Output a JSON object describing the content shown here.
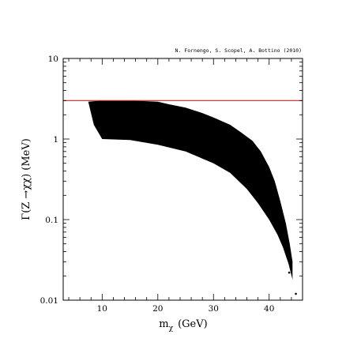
{
  "chart_data": {
    "type": "scatter",
    "title": "",
    "annotation": "N. Fornengo, S. Scopel, A. Bottino  (2010)",
    "xlabel": {
      "main": "m",
      "sub": "χ",
      "unit": "(GeV)"
    },
    "ylabel": "Γ(Z  →χχ)   (MeV)",
    "xlim": [
      3,
      46
    ],
    "ylim": [
      0.01,
      10
    ],
    "yscale": "log",
    "grid": false,
    "x_ticks": [
      "10",
      "20",
      "30",
      "40"
    ],
    "y_ticks": [
      "0.01",
      "0.1",
      "1",
      "10"
    ],
    "reference_line": {
      "y": 3.0,
      "color": "#cc2222"
    },
    "region": {
      "color": "#000000",
      "upper_boundary": [
        {
          "x": 7.5,
          "y": 2.9
        },
        {
          "x": 10,
          "y": 3.0
        },
        {
          "x": 15,
          "y": 3.0
        },
        {
          "x": 20,
          "y": 2.9
        },
        {
          "x": 22,
          "y": 2.7
        },
        {
          "x": 25,
          "y": 2.45
        },
        {
          "x": 28,
          "y": 2.1
        },
        {
          "x": 30,
          "y": 1.85
        },
        {
          "x": 33,
          "y": 1.5
        },
        {
          "x": 35,
          "y": 1.2
        },
        {
          "x": 37,
          "y": 0.95
        },
        {
          "x": 38.5,
          "y": 0.7
        },
        {
          "x": 40,
          "y": 0.45
        },
        {
          "x": 41,
          "y": 0.3
        },
        {
          "x": 42,
          "y": 0.17
        },
        {
          "x": 43,
          "y": 0.09
        },
        {
          "x": 43.7,
          "y": 0.05
        },
        {
          "x": 44.2,
          "y": 0.03
        }
      ],
      "lower_boundary": [
        {
          "x": 7.5,
          "y": 2.9
        },
        {
          "x": 8.5,
          "y": 1.5
        },
        {
          "x": 10,
          "y": 1.0
        },
        {
          "x": 15,
          "y": 0.97
        },
        {
          "x": 20,
          "y": 0.85
        },
        {
          "x": 25,
          "y": 0.7
        },
        {
          "x": 30,
          "y": 0.5
        },
        {
          "x": 33,
          "y": 0.38
        },
        {
          "x": 36,
          "y": 0.24
        },
        {
          "x": 38,
          "y": 0.16
        },
        {
          "x": 40,
          "y": 0.1
        },
        {
          "x": 41.5,
          "y": 0.065
        },
        {
          "x": 42.5,
          "y": 0.045
        },
        {
          "x": 43.5,
          "y": 0.028
        },
        {
          "x": 44.2,
          "y": 0.018
        }
      ],
      "outlier_points": [
        {
          "x": 44.8,
          "y": 0.012
        },
        {
          "x": 43.6,
          "y": 0.022
        }
      ]
    }
  }
}
